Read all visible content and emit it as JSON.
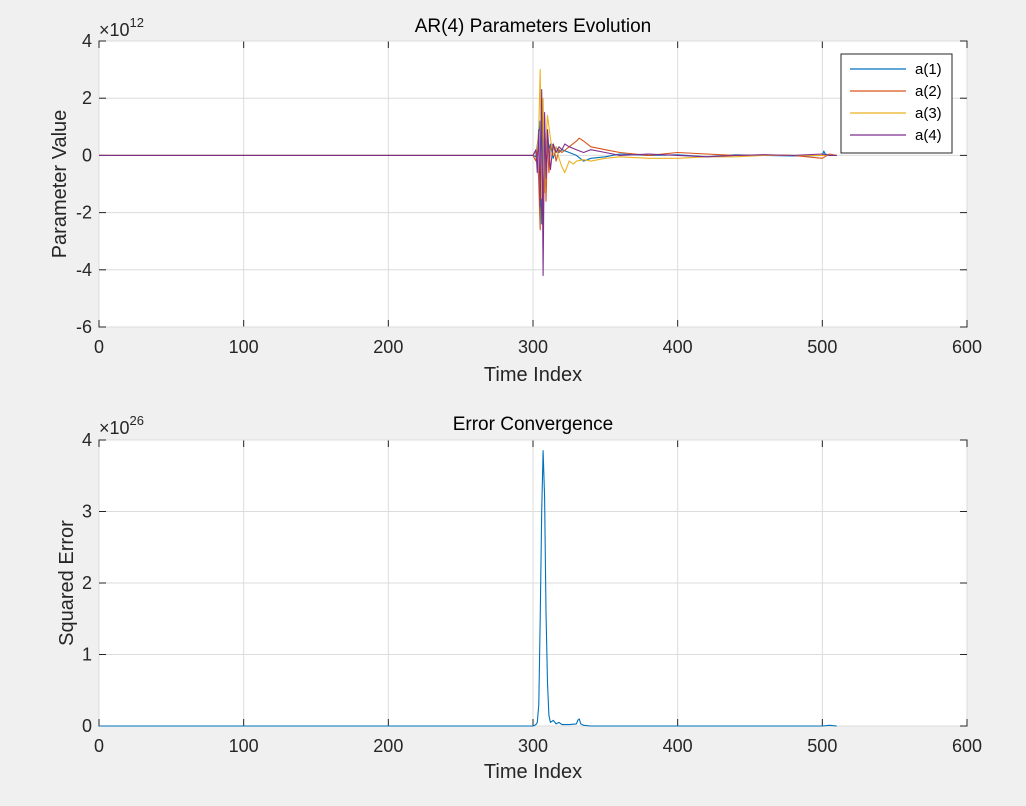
{
  "chart_data": [
    {
      "type": "line",
      "title": "AR(4) Parameters Evolution",
      "xlabel": "Time Index",
      "ylabel": "Parameter Value",
      "xlim": [
        0,
        600
      ],
      "ylim": [
        -6,
        4
      ],
      "y_multiplier_base": "×10",
      "y_multiplier_exp": "12",
      "xticks": [
        "0",
        "100",
        "200",
        "300",
        "400",
        "500",
        "600"
      ],
      "yticks": [
        "-6",
        "-4",
        "-2",
        "0",
        "2",
        "4"
      ],
      "grid": true,
      "legend_position": "top-right",
      "series": [
        {
          "name": "a(1)",
          "color": "#0072bd",
          "x": [
            0,
            300,
            302,
            304,
            305,
            306,
            307,
            308,
            309,
            310,
            311,
            312,
            314,
            316,
            318,
            320,
            325,
            330,
            335,
            340,
            350,
            360,
            380,
            400,
            420,
            440,
            460,
            480,
            500,
            501,
            502,
            505,
            510
          ],
          "y": [
            0,
            0,
            -0.05,
            0.8,
            1.2,
            -2.4,
            0.9,
            1.1,
            -1.2,
            0.6,
            0.2,
            0.4,
            -0.1,
            0.3,
            0.1,
            0.2,
            0.1,
            0.0,
            -0.2,
            -0.1,
            -0.05,
            0.05,
            0.0,
            0.02,
            -0.05,
            0.02,
            0.0,
            -0.02,
            0.0,
            0.15,
            0.05,
            0.0,
            0.0
          ]
        },
        {
          "name": "a(2)",
          "color": "#d95319",
          "x": [
            0,
            300,
            302,
            303,
            304,
            305,
            306,
            307,
            308,
            309,
            310,
            311,
            312,
            314,
            316,
            318,
            320,
            325,
            330,
            332,
            335,
            340,
            350,
            360,
            380,
            400,
            420,
            440,
            460,
            480,
            500,
            505,
            510
          ],
          "y": [
            0,
            0,
            -0.2,
            0.3,
            -1.0,
            -2.6,
            1.2,
            -2.2,
            1.3,
            -1.6,
            0.5,
            -0.6,
            0.3,
            0.4,
            -0.2,
            0.2,
            0.1,
            0.3,
            0.5,
            0.6,
            0.5,
            0.3,
            0.2,
            0.1,
            0.0,
            0.1,
            0.05,
            0.0,
            0.02,
            0.0,
            -0.1,
            0.05,
            0.0
          ]
        },
        {
          "name": "a(3)",
          "color": "#edb120",
          "x": [
            0,
            300,
            303,
            304,
            305,
            306,
            307,
            308,
            309,
            310,
            312,
            314,
            316,
            318,
            320,
            322,
            325,
            328,
            330,
            335,
            340,
            350,
            360,
            380,
            400,
            420,
            440,
            460,
            480,
            500,
            505,
            510
          ],
          "y": [
            0,
            0,
            0.2,
            1.0,
            3.0,
            -1.5,
            2.0,
            -1.3,
            0.5,
            1.4,
            0.6,
            0.0,
            0.3,
            -0.1,
            -0.4,
            -0.6,
            -0.2,
            -0.3,
            -0.2,
            -0.15,
            -0.2,
            -0.1,
            -0.05,
            -0.1,
            -0.1,
            -0.05,
            -0.05,
            0.0,
            0.0,
            0.0,
            0.0,
            0.0
          ]
        },
        {
          "name": "a(4)",
          "color": "#7e2f8e",
          "x": [
            0,
            300,
            302,
            303,
            304,
            305,
            306,
            307,
            308,
            309,
            310,
            311,
            312,
            314,
            316,
            318,
            320,
            322,
            325,
            330,
            335,
            340,
            350,
            360,
            380,
            400,
            420,
            440,
            460,
            480,
            500,
            505,
            510
          ],
          "y": [
            0,
            0,
            0.2,
            -0.6,
            0.9,
            -1.8,
            2.3,
            -4.2,
            1.5,
            -0.8,
            0.9,
            0.2,
            -0.5,
            0.4,
            0.1,
            0.3,
            0.2,
            0.4,
            0.3,
            0.2,
            0.1,
            0.2,
            0.1,
            0.0,
            0.05,
            0.0,
            -0.05,
            0.0,
            0.02,
            0.0,
            0.05,
            0.0,
            0.0
          ]
        }
      ]
    },
    {
      "type": "line",
      "title": "Error Convergence",
      "xlabel": "Time Index",
      "ylabel": "Squared Error",
      "xlim": [
        0,
        600
      ],
      "ylim": [
        0,
        4
      ],
      "y_multiplier_base": "×10",
      "y_multiplier_exp": "26",
      "xticks": [
        "0",
        "100",
        "200",
        "300",
        "400",
        "500",
        "600"
      ],
      "yticks": [
        "0",
        "1",
        "2",
        "3",
        "4"
      ],
      "grid": true,
      "series": [
        {
          "color": "#0072bd",
          "x": [
            0,
            300,
            302,
            303,
            304,
            305,
            306,
            307,
            308,
            309,
            310,
            311,
            312,
            314,
            316,
            318,
            320,
            325,
            330,
            331,
            332,
            333,
            335,
            340,
            360,
            400,
            450,
            500,
            505,
            510
          ],
          "y": [
            0,
            0,
            0.02,
            0.05,
            0.3,
            1.5,
            3.0,
            3.85,
            3.2,
            1.6,
            0.6,
            0.15,
            0.05,
            0.08,
            0.03,
            0.05,
            0.02,
            0.02,
            0.03,
            0.08,
            0.1,
            0.03,
            0.01,
            0.0,
            0.0,
            0.0,
            0.0,
            0.0,
            0.01,
            0.0
          ]
        }
      ]
    }
  ]
}
